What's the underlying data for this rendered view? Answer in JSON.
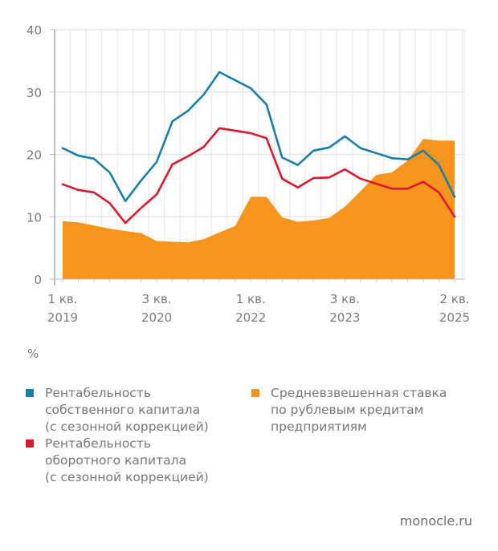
{
  "chart_data": {
    "type": "line",
    "title": "",
    "xlabel": "",
    "ylabel": "%",
    "ylim": [
      0,
      40
    ],
    "yticks": [
      0,
      10,
      20,
      30,
      40
    ],
    "grid": true,
    "legend_position": "bottom",
    "x": [
      "1 кв. 2019",
      "2 кв. 2019",
      "3 кв. 2019",
      "4 кв. 2019",
      "1 кв. 2020",
      "2 кв. 2020",
      "3 кв. 2020",
      "4 кв. 2020",
      "1 кв. 2021",
      "2 кв. 2021",
      "3 кв. 2021",
      "4 кв. 2021",
      "1 кв. 2022",
      "2 кв. 2022",
      "3 кв. 2022",
      "4 кв. 2022",
      "1 кв. 2023",
      "2 кв. 2023",
      "3 кв. 2023",
      "4 кв. 2023",
      "1 кв. 2024",
      "2 кв. 2024",
      "3 кв. 2024",
      "4 кв. 2024",
      "1 кв. 2025",
      "2 кв. 2025"
    ],
    "xtick_labels": [
      {
        "index": 0,
        "line1": "1 кв.",
        "line2": "2019"
      },
      {
        "index": 6,
        "line1": "3 кв.",
        "line2": "2020"
      },
      {
        "index": 12,
        "line1": "1 кв.",
        "line2": "2022"
      },
      {
        "index": 18,
        "line1": "3 кв.",
        "line2": "2023"
      },
      {
        "index": 25,
        "line1": "2 кв.",
        "line2": "2025"
      }
    ],
    "series": [
      {
        "name": "Средневзвешенная ставка по рублевым кредитам предприятиям",
        "kind": "area",
        "color": "#f7941d",
        "values": [
          9.3,
          9.1,
          8.6,
          8.1,
          7.7,
          7.4,
          6.1,
          6.0,
          5.9,
          6.4,
          7.5,
          8.5,
          13.2,
          13.2,
          9.9,
          9.2,
          9.4,
          9.8,
          11.6,
          14.1,
          16.7,
          17.1,
          19.0,
          22.5,
          22.2,
          22.2
        ]
      },
      {
        "name": "Рентабельность собственного капитала (с сезонной коррекцией)",
        "kind": "line",
        "color": "#1a7fa6",
        "values": [
          21.0,
          19.8,
          19.3,
          17.1,
          12.5,
          15.8,
          18.8,
          25.3,
          27.0,
          29.6,
          33.2,
          31.9,
          30.6,
          28.0,
          19.5,
          18.3,
          20.6,
          21.1,
          22.9,
          21.0,
          20.2,
          19.4,
          19.2,
          20.6,
          18.3,
          13.2
        ]
      },
      {
        "name": "Рентабельность оборотного капитала (с сезонной коррекцией)",
        "kind": "line",
        "color": "#d7192e",
        "values": [
          15.2,
          14.3,
          13.9,
          12.2,
          9.0,
          11.4,
          13.6,
          18.4,
          19.7,
          21.2,
          24.2,
          23.8,
          23.4,
          22.6,
          16.1,
          14.7,
          16.2,
          16.3,
          17.6,
          16.1,
          15.3,
          14.5,
          14.5,
          15.6,
          13.9,
          10.0
        ]
      }
    ]
  },
  "unit_label": "%",
  "legend": {
    "roe": {
      "label": "Рентабельность\nсобственного капитала\n(с сезонной коррекцией)",
      "color": "#1a7fa6"
    },
    "rowc": {
      "label": "Рентабельность\nоборотного капитала\n(с сезонной коррекцией)",
      "color": "#d7192e"
    },
    "rate": {
      "label": "Средневзвешенная ставка\nпо рублевым кредитам\nпредприятиям",
      "color": "#f7941d"
    }
  },
  "source": "monocle.ru"
}
